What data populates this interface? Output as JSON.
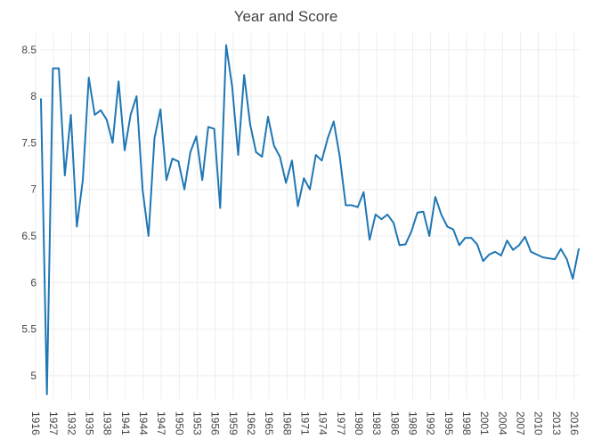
{
  "chart_data": {
    "type": "line",
    "title": "Year and Score",
    "xlabel": "",
    "ylabel": "",
    "ylim": [
      4.75,
      8.68
    ],
    "y_ticks": [
      5,
      5.5,
      6,
      6.5,
      7,
      7.5,
      8,
      8.5
    ],
    "y_tick_labels": [
      "5",
      "5.5",
      "6",
      "6.5",
      "7",
      "7.5",
      "8",
      "8.5"
    ],
    "x_tick_labels": [
      "1916",
      "1927",
      "1932",
      "1935",
      "1938",
      "1941",
      "1944",
      "1947",
      "1950",
      "1953",
      "1956",
      "1959",
      "1962",
      "1965",
      "1968",
      "1971",
      "1974",
      "1977",
      "1980",
      "1983",
      "1986",
      "1989",
      "1992",
      "1995",
      "1998",
      "2001",
      "2004",
      "2007",
      "2010",
      "2013",
      "2016"
    ],
    "line_color": "#1f77b4",
    "series": [
      {
        "name": "Score",
        "values": [
          7.97,
          4.8,
          8.3,
          8.3,
          7.15,
          7.8,
          6.6,
          7.1,
          8.2,
          7.8,
          7.85,
          7.75,
          7.5,
          8.16,
          7.42,
          7.8,
          8.0,
          7.0,
          6.5,
          7.55,
          7.86,
          7.1,
          7.33,
          7.3,
          7.0,
          7.4,
          7.57,
          7.1,
          7.67,
          7.65,
          6.8,
          8.55,
          8.1,
          7.37,
          8.23,
          7.7,
          7.4,
          7.35,
          7.78,
          7.47,
          7.35,
          7.07,
          7.31,
          6.82,
          7.12,
          7.0,
          7.37,
          7.31,
          7.55,
          7.73,
          7.35,
          6.83,
          6.83,
          6.81,
          6.97,
          6.46,
          6.73,
          6.68,
          6.73,
          6.64,
          6.4,
          6.41,
          6.55,
          6.75,
          6.76,
          6.5,
          6.92,
          6.73,
          6.6,
          6.57,
          6.4,
          6.48,
          6.48,
          6.41,
          6.23,
          6.3,
          6.33,
          6.29,
          6.45,
          6.35,
          6.4,
          6.49,
          6.33,
          6.3,
          6.27,
          6.26,
          6.25,
          6.36,
          6.25,
          6.04,
          6.36
        ]
      }
    ]
  }
}
